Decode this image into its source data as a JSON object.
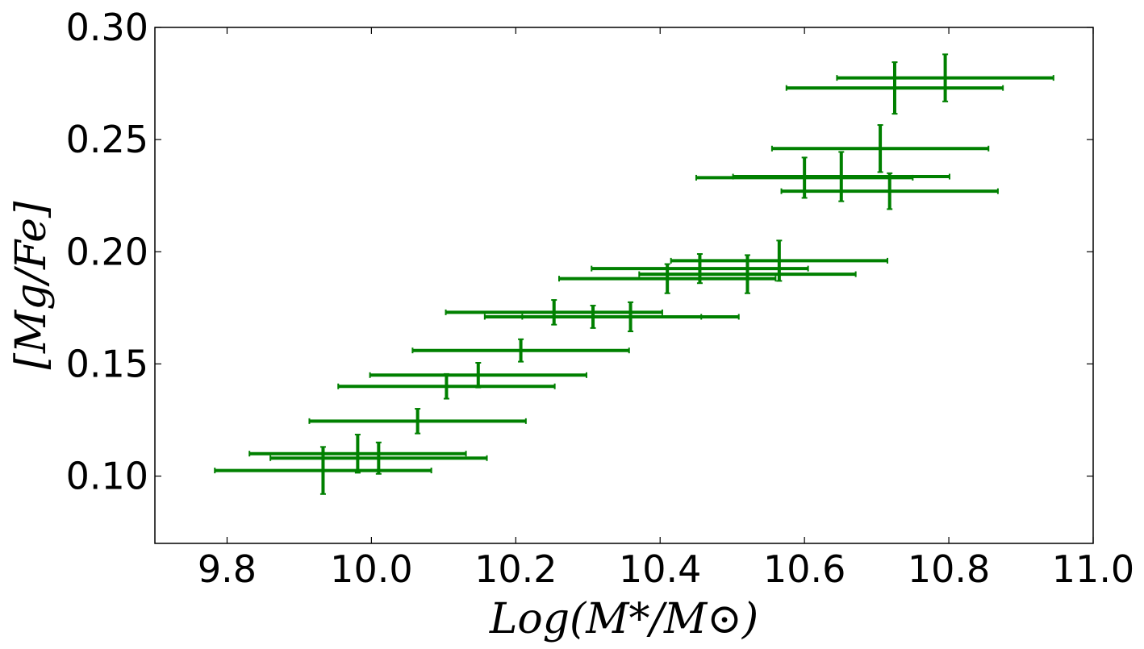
{
  "chart_data": {
    "type": "scatter",
    "title": "",
    "xlabel": "Log(M*/M⊙)",
    "ylabel": "[Mg/Fe]",
    "xlim": [
      9.7,
      11.0
    ],
    "ylim": [
      0.07,
      0.3
    ],
    "xticks": [
      "9.8",
      "10.0",
      "10.2",
      "10.4",
      "10.6",
      "10.8",
      "11.0"
    ],
    "yticks": [
      "0.10",
      "0.15",
      "0.20",
      "0.25",
      "0.30"
    ],
    "grid": false,
    "color": "#008000",
    "series": [
      {
        "name": "data",
        "points": [
          {
            "x": 9.933,
            "y": 0.1025,
            "xerr": 0.15,
            "yerr": 0.0105
          },
          {
            "x": 9.981,
            "y": 0.11,
            "xerr": 0.15,
            "yerr": 0.0085
          },
          {
            "x": 10.01,
            "y": 0.108,
            "xerr": 0.15,
            "yerr": 0.007
          },
          {
            "x": 10.064,
            "y": 0.1245,
            "xerr": 0.15,
            "yerr": 0.0055
          },
          {
            "x": 10.104,
            "y": 0.14,
            "xerr": 0.15,
            "yerr": 0.0055
          },
          {
            "x": 10.148,
            "y": 0.145,
            "xerr": 0.15,
            "yerr": 0.0055
          },
          {
            "x": 10.207,
            "y": 0.156,
            "xerr": 0.15,
            "yerr": 0.005
          },
          {
            "x": 10.253,
            "y": 0.173,
            "xerr": 0.15,
            "yerr": 0.0055
          },
          {
            "x": 10.307,
            "y": 0.171,
            "xerr": 0.15,
            "yerr": 0.005
          },
          {
            "x": 10.359,
            "y": 0.171,
            "xerr": 0.15,
            "yerr": 0.0065
          },
          {
            "x": 10.41,
            "y": 0.188,
            "xerr": 0.15,
            "yerr": 0.0065
          },
          {
            "x": 10.455,
            "y": 0.1925,
            "xerr": 0.15,
            "yerr": 0.0065
          },
          {
            "x": 10.521,
            "y": 0.19,
            "xerr": 0.15,
            "yerr": 0.0085
          },
          {
            "x": 10.565,
            "y": 0.196,
            "xerr": 0.15,
            "yerr": 0.009
          },
          {
            "x": 10.6,
            "y": 0.233,
            "xerr": 0.15,
            "yerr": 0.009
          },
          {
            "x": 10.651,
            "y": 0.2335,
            "xerr": 0.15,
            "yerr": 0.011
          },
          {
            "x": 10.705,
            "y": 0.246,
            "xerr": 0.15,
            "yerr": 0.0105
          },
          {
            "x": 10.718,
            "y": 0.227,
            "xerr": 0.15,
            "yerr": 0.008
          },
          {
            "x": 10.725,
            "y": 0.273,
            "xerr": 0.15,
            "yerr": 0.0115
          },
          {
            "x": 10.795,
            "y": 0.2775,
            "xerr": 0.15,
            "yerr": 0.0105
          }
        ]
      }
    ]
  }
}
